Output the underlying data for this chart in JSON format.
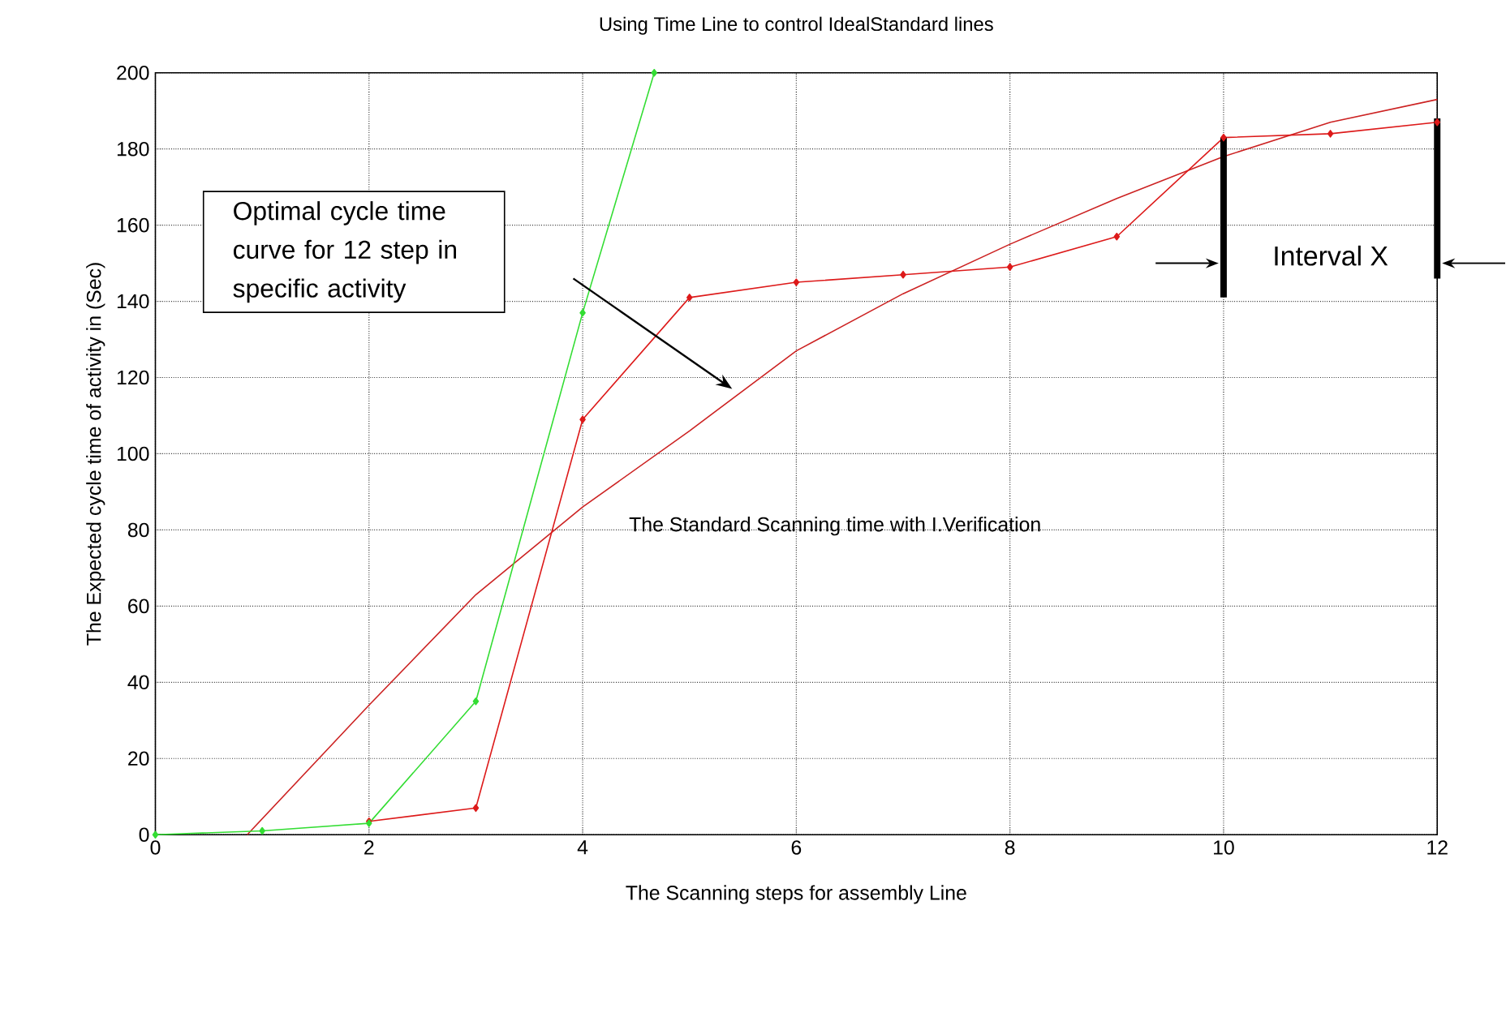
{
  "chart_data": {
    "type": "line",
    "title": "Using Time Line to control IdealStandard lines",
    "xlabel": "The Scanning steps for assembly Line",
    "ylabel": "The Expected cycle time of activity in (Sec)",
    "xlim": [
      0,
      12
    ],
    "xticks": [
      0,
      2,
      4,
      6,
      8,
      10,
      12
    ],
    "ylim": [
      0,
      200
    ],
    "yticks": [
      0,
      20,
      40,
      60,
      80,
      100,
      120,
      140,
      160,
      180,
      200
    ],
    "grid": true,
    "line_style": "solid",
    "series": [
      {
        "color": "#33dd33",
        "marker": "diamond",
        "x": [
          0,
          1,
          2,
          3,
          4,
          4.67
        ],
        "values": [
          0,
          1,
          3,
          35,
          137,
          200
        ]
      },
      {
        "color": "#dd1a1a",
        "marker": "diamond",
        "x": [
          2,
          3,
          4,
          5,
          6,
          7,
          8,
          9,
          10,
          11,
          12
        ],
        "values": [
          3.5,
          7,
          109,
          141,
          145,
          147,
          149,
          157,
          183,
          184,
          187
        ]
      },
      {
        "color": "#cc2222",
        "marker": "none",
        "x": [
          0.86,
          2,
          3,
          4,
          5,
          6,
          7,
          8,
          9,
          10,
          11,
          12
        ],
        "values": [
          0,
          34,
          63,
          86,
          106,
          127,
          142,
          155,
          167,
          178,
          187,
          193
        ]
      }
    ],
    "annotations": [
      "Optimal cycle time curve for 12 step in specific activity",
      "The Standard Scanning time with I.Verification",
      "Interval X"
    ],
    "ref_lines": [
      {
        "axis": "x",
        "value": 10,
        "color": "#000000"
      },
      {
        "axis": "x",
        "value": 12,
        "color": "#000000"
      }
    ]
  }
}
